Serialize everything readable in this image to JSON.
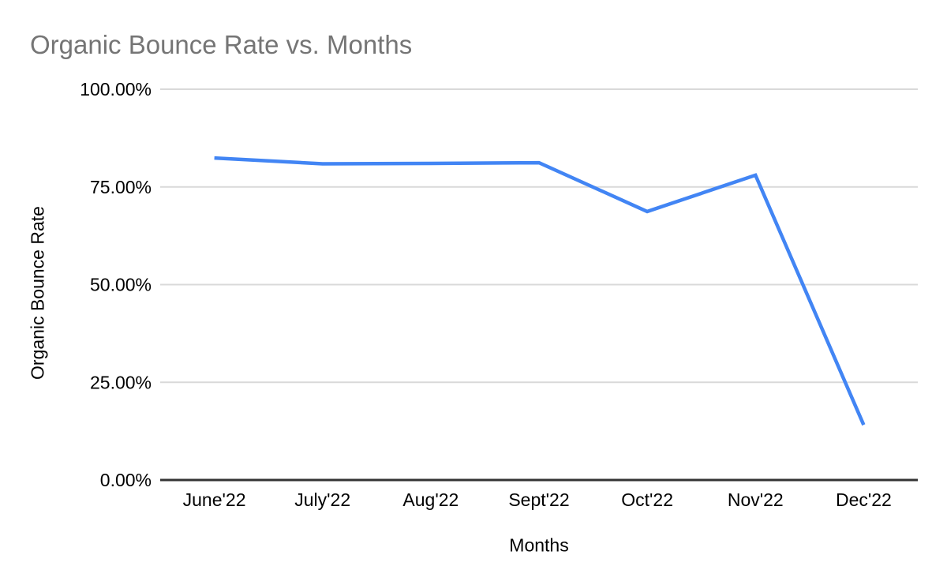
{
  "chart_data": {
    "type": "line",
    "title": "Organic Bounce Rate vs. Months",
    "xlabel": "Months",
    "ylabel": "Organic Bounce Rate",
    "categories": [
      "June'22",
      "July'22",
      "Aug'22",
      "Sept'22",
      "Oct'22",
      "Nov'22",
      "Dec'22"
    ],
    "series": [
      {
        "name": "Organic Bounce Rate",
        "values": [
          82.4,
          80.9,
          81.0,
          81.2,
          68.7,
          78.0,
          14.1
        ]
      }
    ],
    "ylim": [
      0,
      100
    ],
    "yticks": [
      {
        "value": 0,
        "label": "0.00%"
      },
      {
        "value": 25,
        "label": "25.00%"
      },
      {
        "value": 50,
        "label": "50.00%"
      },
      {
        "value": 75,
        "label": "75.00%"
      },
      {
        "value": 100,
        "label": "100.00%"
      }
    ],
    "grid": true,
    "legend_position": "none",
    "colors": {
      "line": "#4285f4",
      "title_text": "#757575",
      "gridline": "#d9d9d9",
      "axis_baseline": "#333333",
      "tick_label": "#000000"
    }
  }
}
